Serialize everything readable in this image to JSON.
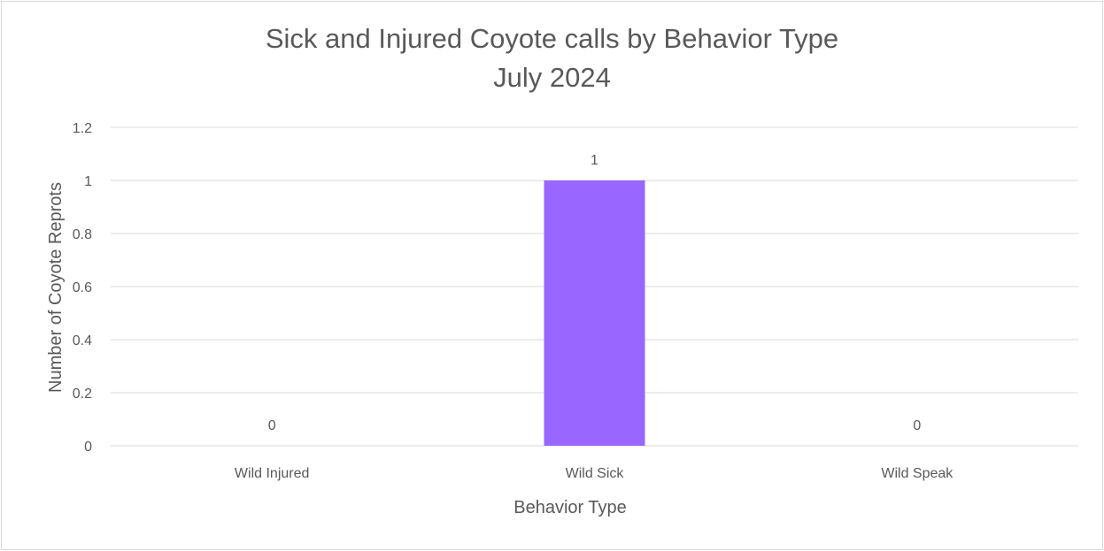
{
  "chart_data": {
    "type": "bar",
    "title_line1": "Sick and Injured Coyote calls by Behavior Type",
    "title_line2": "July 2024",
    "xlabel": "Behavior Type",
    "ylabel": "Number of Coyote Reprots",
    "categories": [
      "Wild Injured",
      "Wild Sick",
      "Wild Speak"
    ],
    "values": [
      0,
      1,
      0
    ],
    "data_labels": [
      "0",
      "1",
      "0"
    ],
    "ylim": [
      0,
      1.2
    ],
    "yticks": [
      "0",
      "0.2",
      "0.4",
      "0.6",
      "0.8",
      "1",
      "1.2"
    ],
    "grid": true,
    "legend": "none",
    "bar_color": "#9966ff"
  }
}
